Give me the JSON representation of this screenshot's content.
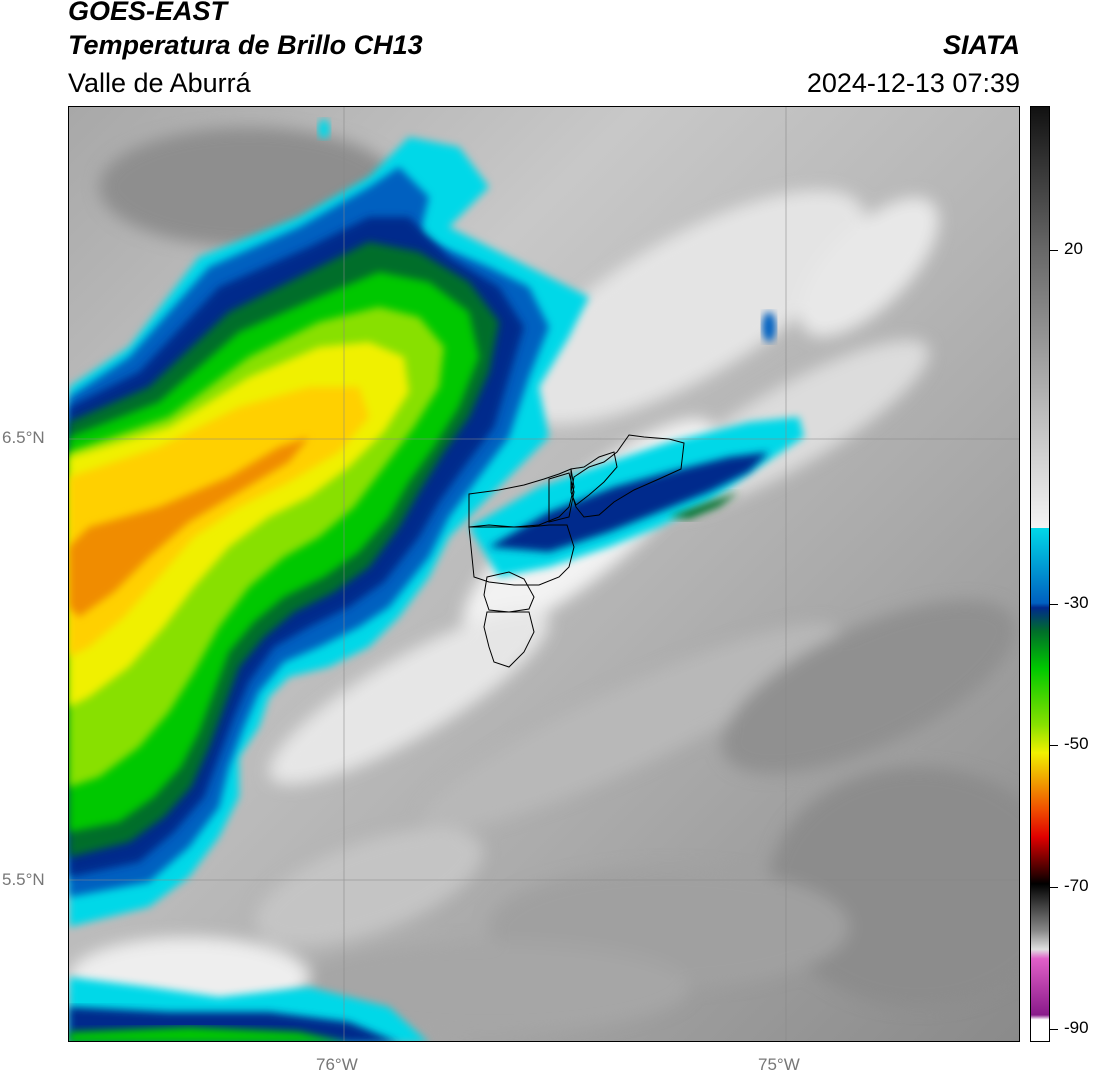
{
  "header": {
    "satellite": "GOES-EAST",
    "product": "Temperatura de Brillo CH13",
    "region": "Valle de Aburrá",
    "organization": "SIATA",
    "timestamp": "2024-12-13 07:39"
  },
  "map": {
    "lat_labels": [
      "6.5°N",
      "5.5°N"
    ],
    "lon_labels": [
      "76°W",
      "75°W"
    ]
  },
  "colorbar": {
    "tick_labels": [
      "20",
      "-30",
      "-50",
      "-70",
      "-90"
    ],
    "colors": {
      "cold_cyan": "#00d8e8",
      "dark_blue": "#002a8c",
      "green": "#00c800",
      "yellow": "#f0f000",
      "orange": "#f08c00",
      "red": "#e00000",
      "black": "#000000",
      "purple": "#8a1a8a"
    }
  }
}
